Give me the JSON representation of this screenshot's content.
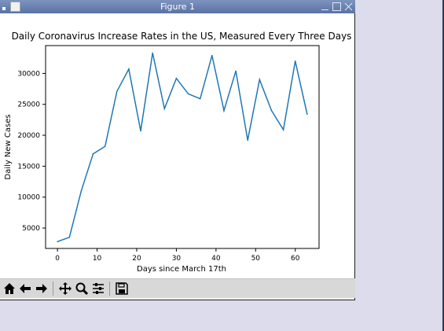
{
  "window": {
    "title": "Figure 1"
  },
  "toolbar": {
    "items": [
      {
        "name": "home-icon"
      },
      {
        "name": "back-arrow-icon"
      },
      {
        "name": "forward-arrow-icon"
      },
      {
        "name": "pan-move-icon"
      },
      {
        "name": "zoom-magnifier-icon"
      },
      {
        "name": "configure-subplots-icon"
      },
      {
        "name": "save-floppy-icon"
      }
    ]
  },
  "chart_data": {
    "type": "line",
    "title": "Daily Coronavirus Increase Rates in the US, Measured Every Three Days",
    "xlabel": "Days since March 17th",
    "ylabel": "Daily New Cases",
    "xlim": [
      -3,
      66
    ],
    "ylim": [
      1700,
      34500
    ],
    "x_ticks": [
      0,
      10,
      20,
      30,
      40,
      50,
      60
    ],
    "y_ticks": [
      5000,
      10000,
      15000,
      20000,
      25000,
      30000
    ],
    "series": [
      {
        "color": "#1f77b4",
        "x": [
          0,
          3,
          6,
          9,
          12,
          15,
          18,
          21,
          24,
          27,
          30,
          33,
          36,
          39,
          42,
          45,
          48,
          51,
          54,
          57,
          60,
          63
        ],
        "y": [
          2800,
          3500,
          11000,
          17000,
          18200,
          27100,
          30700,
          20700,
          33300,
          24300,
          29200,
          26700,
          25900,
          32900,
          24000,
          30400,
          19200,
          29000,
          24000,
          20900,
          32000,
          23400
        ]
      }
    ]
  }
}
